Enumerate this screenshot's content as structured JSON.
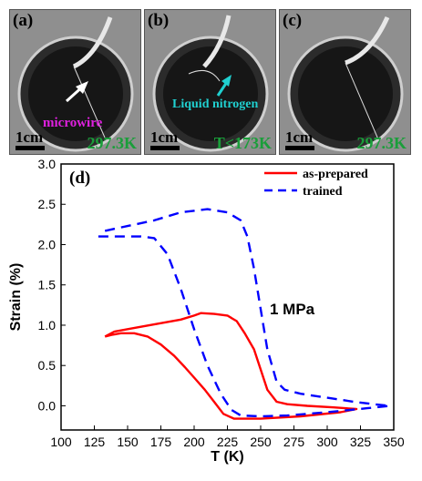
{
  "panels": [
    {
      "tag": "(a)",
      "temperature": "297.3K",
      "scale": "1cm",
      "note": "microwire"
    },
    {
      "tag": "(b)",
      "temperature": "T<173K",
      "scale": "1cm",
      "note": "Liquid nitrogen"
    },
    {
      "tag": "(c)",
      "temperature": "297.3K",
      "scale": "1cm"
    }
  ],
  "colors": {
    "as_prepared": "#ff0000",
    "trained": "#0000ff",
    "temp_label": "#1a9e3a",
    "microwire_label": "#e020e0",
    "nitrogen_label": "#20d0d0"
  },
  "chart_data": {
    "type": "line",
    "panel_tag": "(d)",
    "xlabel": "T (K)",
    "ylabel": "Strain (%)",
    "xlim": [
      100,
      350
    ],
    "ylim": [
      -0.3,
      3.0
    ],
    "xticks": [
      100,
      125,
      150,
      175,
      200,
      225,
      250,
      275,
      300,
      325,
      350
    ],
    "yticks": [
      0.0,
      0.5,
      1.0,
      1.5,
      2.0,
      2.5,
      3.0
    ],
    "ytick_labels": [
      "0.0",
      "0.5",
      "1.0",
      "1.5",
      "2.0",
      "2.5",
      "3.0"
    ],
    "annotation": "1 MPa",
    "legend_position": "top-right",
    "series": [
      {
        "name": "as-prepared",
        "style": "solid",
        "x": [
          133,
          140,
          160,
          180,
          190,
          200,
          205,
          215,
          225,
          232,
          238,
          245,
          250,
          255,
          262,
          270,
          285,
          305,
          322,
          310,
          280,
          250,
          230,
          222,
          215,
          208,
          200,
          193,
          185,
          175,
          165,
          155,
          145,
          138,
          133
        ],
        "y": [
          0.86,
          0.92,
          0.98,
          1.04,
          1.07,
          1.12,
          1.15,
          1.14,
          1.12,
          1.05,
          0.9,
          0.7,
          0.45,
          0.2,
          0.05,
          0.02,
          0.0,
          -0.02,
          -0.04,
          -0.08,
          -0.13,
          -0.16,
          -0.16,
          -0.1,
          0.05,
          0.2,
          0.35,
          0.48,
          0.62,
          0.76,
          0.86,
          0.9,
          0.9,
          0.88,
          0.86
        ]
      },
      {
        "name": "trained",
        "style": "dashed",
        "x": [
          133,
          150,
          170,
          190,
          210,
          225,
          235,
          240,
          245,
          250,
          255,
          262,
          268,
          280,
          300,
          320,
          335,
          347,
          330,
          300,
          270,
          250,
          235,
          228,
          220,
          210,
          200,
          190,
          180,
          170,
          160,
          145,
          128
        ],
        "y": [
          2.17,
          2.23,
          2.3,
          2.4,
          2.44,
          2.4,
          2.3,
          2.1,
          1.7,
          1.2,
          0.7,
          0.3,
          0.2,
          0.15,
          0.1,
          0.05,
          0.02,
          0.0,
          -0.03,
          -0.08,
          -0.12,
          -0.13,
          -0.12,
          -0.05,
          0.15,
          0.5,
          0.95,
          1.45,
          1.88,
          2.08,
          2.1,
          2.1,
          2.1
        ]
      }
    ]
  }
}
